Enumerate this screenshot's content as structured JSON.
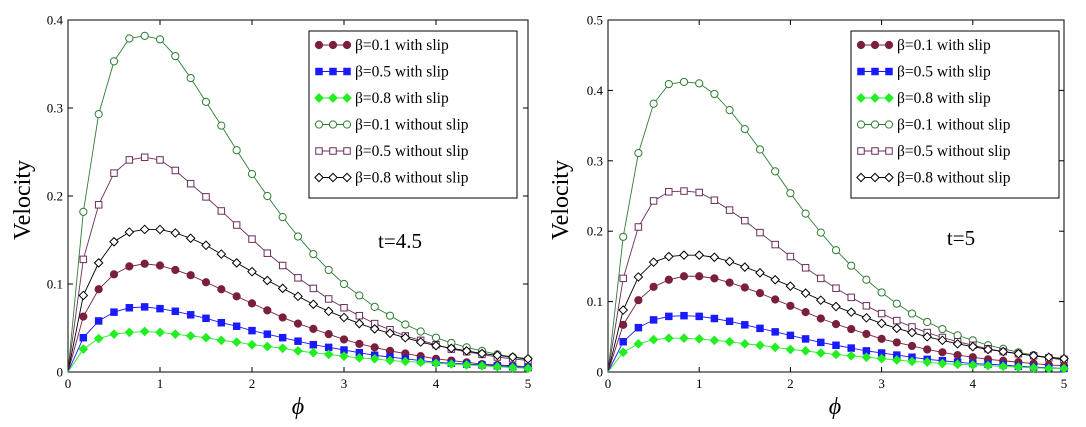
{
  "chart_data": [
    {
      "type": "line",
      "annotation": "t=4.5",
      "xlabel": "ϕ",
      "ylabel": "Velocity",
      "xlim": [
        0,
        5
      ],
      "ylim": [
        0,
        0.4
      ],
      "x_ticks": [
        0,
        1,
        2,
        3,
        4,
        5
      ],
      "y_ticks": [
        0,
        0.1,
        0.2,
        0.3,
        0.4
      ],
      "x_tick_labels": [
        "0",
        "1",
        "2",
        "3",
        "4",
        "5"
      ],
      "y_tick_labels": [
        "0",
        "0.1",
        "0.2",
        "0.3",
        "0.4"
      ],
      "legend_position": "top-right",
      "grid": false,
      "x": [
        0,
        0.1667,
        0.3333,
        0.5,
        0.6667,
        0.8333,
        1,
        1.1667,
        1.3333,
        1.5,
        1.6667,
        1.8333,
        2,
        2.1667,
        2.3333,
        2.5,
        2.6667,
        2.8333,
        3,
        3.1667,
        3.3333,
        3.5,
        3.6667,
        3.8333,
        4,
        4.1667,
        4.3333,
        4.5,
        4.6667,
        4.8333,
        5
      ],
      "series": [
        {
          "name": "β=0.1 with slip",
          "marker": "filled-circle",
          "color": "#7a1f3d",
          "values": [
            0,
            0.063,
            0.094,
            0.111,
            0.12,
            0.123,
            0.121,
            0.116,
            0.11,
            0.102,
            0.094,
            0.086,
            0.078,
            0.07,
            0.062,
            0.055,
            0.049,
            0.043,
            0.037,
            0.032,
            0.028,
            0.024,
            0.021,
            0.018,
            0.015,
            0.013,
            0.011,
            0.009,
            0.008,
            0.007,
            0.006
          ]
        },
        {
          "name": "β=0.5 with slip",
          "marker": "filled-square",
          "color": "#1a1aff",
          "values": [
            0,
            0.039,
            0.058,
            0.068,
            0.073,
            0.074,
            0.072,
            0.069,
            0.065,
            0.061,
            0.056,
            0.052,
            0.047,
            0.043,
            0.039,
            0.035,
            0.031,
            0.028,
            0.025,
            0.022,
            0.019,
            0.017,
            0.015,
            0.013,
            0.011,
            0.01,
            0.009,
            0.008,
            0.007,
            0.006,
            0.005
          ]
        },
        {
          "name": "β=0.8 with slip",
          "marker": "filled-diamond",
          "color": "#22ee22",
          "values": [
            0,
            0.026,
            0.038,
            0.043,
            0.045,
            0.046,
            0.045,
            0.043,
            0.041,
            0.039,
            0.036,
            0.034,
            0.031,
            0.029,
            0.027,
            0.024,
            0.022,
            0.02,
            0.018,
            0.016,
            0.015,
            0.013,
            0.012,
            0.011,
            0.01,
            0.009,
            0.008,
            0.007,
            0.006,
            0.005,
            0.004
          ]
        },
        {
          "name": "β=0.1 without slip",
          "marker": "open-circle",
          "color": "#2e7d32",
          "values": [
            0,
            0.182,
            0.293,
            0.353,
            0.379,
            0.382,
            0.378,
            0.359,
            0.334,
            0.307,
            0.28,
            0.252,
            0.225,
            0.2,
            0.176,
            0.154,
            0.134,
            0.116,
            0.1,
            0.087,
            0.074,
            0.064,
            0.054,
            0.046,
            0.039,
            0.033,
            0.028,
            0.024,
            0.02,
            0.017,
            0.014
          ]
        },
        {
          "name": "β=0.5 without slip",
          "marker": "open-square",
          "color": "#6b2d5c",
          "values": [
            0,
            0.128,
            0.19,
            0.226,
            0.241,
            0.244,
            0.241,
            0.229,
            0.214,
            0.199,
            0.183,
            0.167,
            0.151,
            0.135,
            0.121,
            0.107,
            0.095,
            0.083,
            0.073,
            0.064,
            0.055,
            0.048,
            0.041,
            0.036,
            0.031,
            0.026,
            0.023,
            0.02,
            0.017,
            0.015,
            0.013
          ]
        },
        {
          "name": "β=0.8 without slip",
          "marker": "open-diamond",
          "color": "#000000",
          "values": [
            0,
            0.087,
            0.124,
            0.148,
            0.159,
            0.162,
            0.162,
            0.158,
            0.152,
            0.144,
            0.134,
            0.124,
            0.114,
            0.104,
            0.095,
            0.086,
            0.077,
            0.069,
            0.062,
            0.055,
            0.049,
            0.044,
            0.039,
            0.034,
            0.03,
            0.027,
            0.024,
            0.021,
            0.019,
            0.017,
            0.015
          ]
        }
      ]
    },
    {
      "type": "line",
      "annotation": "t=5",
      "xlabel": "ϕ",
      "ylabel": "Velocity",
      "xlim": [
        0,
        5
      ],
      "ylim": [
        0,
        0.5
      ],
      "x_ticks": [
        0,
        1,
        2,
        3,
        4,
        5
      ],
      "y_ticks": [
        0,
        0.1,
        0.2,
        0.3,
        0.4,
        0.5
      ],
      "x_tick_labels": [
        "0",
        "1",
        "2",
        "3",
        "4",
        "5"
      ],
      "y_tick_labels": [
        "0",
        "0.1",
        "0.2",
        "0.3",
        "0.4",
        "0.5"
      ],
      "legend_position": "top-right",
      "grid": false,
      "x": [
        0,
        0.1667,
        0.3333,
        0.5,
        0.6667,
        0.8333,
        1,
        1.1667,
        1.3333,
        1.5,
        1.6667,
        1.8333,
        2,
        2.1667,
        2.3333,
        2.5,
        2.6667,
        2.8333,
        3,
        3.1667,
        3.3333,
        3.5,
        3.6667,
        3.8333,
        4,
        4.1667,
        4.3333,
        4.5,
        4.6667,
        4.8333,
        5
      ],
      "series": [
        {
          "name": "β=0.1 with slip",
          "marker": "filled-circle",
          "color": "#7a1f3d",
          "values": [
            0,
            0.067,
            0.102,
            0.121,
            0.131,
            0.136,
            0.136,
            0.133,
            0.127,
            0.12,
            0.112,
            0.103,
            0.094,
            0.085,
            0.076,
            0.068,
            0.061,
            0.054,
            0.047,
            0.042,
            0.037,
            0.032,
            0.028,
            0.024,
            0.021,
            0.018,
            0.016,
            0.014,
            0.012,
            0.01,
            0.009
          ]
        },
        {
          "name": "β=0.5 with slip",
          "marker": "filled-square",
          "color": "#1a1aff",
          "values": [
            0,
            0.043,
            0.063,
            0.074,
            0.079,
            0.08,
            0.079,
            0.076,
            0.072,
            0.067,
            0.062,
            0.057,
            0.052,
            0.047,
            0.042,
            0.038,
            0.034,
            0.03,
            0.027,
            0.024,
            0.021,
            0.018,
            0.016,
            0.014,
            0.012,
            0.011,
            0.01,
            0.008,
            0.007,
            0.006,
            0.005
          ]
        },
        {
          "name": "β=0.8 with slip",
          "marker": "filled-diamond",
          "color": "#22ee22",
          "values": [
            0,
            0.028,
            0.04,
            0.046,
            0.048,
            0.048,
            0.047,
            0.045,
            0.043,
            0.04,
            0.038,
            0.035,
            0.032,
            0.03,
            0.027,
            0.025,
            0.023,
            0.021,
            0.019,
            0.017,
            0.015,
            0.014,
            0.012,
            0.011,
            0.01,
            0.009,
            0.008,
            0.007,
            0.006,
            0.005,
            0.005
          ]
        },
        {
          "name": "β=0.1 without slip",
          "marker": "open-circle",
          "color": "#2e7d32",
          "values": [
            0,
            0.192,
            0.311,
            0.381,
            0.409,
            0.412,
            0.41,
            0.395,
            0.372,
            0.345,
            0.316,
            0.285,
            0.254,
            0.225,
            0.198,
            0.173,
            0.151,
            0.131,
            0.113,
            0.097,
            0.083,
            0.071,
            0.061,
            0.052,
            0.045,
            0.038,
            0.033,
            0.028,
            0.024,
            0.02,
            0.017
          ]
        },
        {
          "name": "β=0.5 without slip",
          "marker": "open-square",
          "color": "#6b2d5c",
          "values": [
            0,
            0.133,
            0.206,
            0.243,
            0.256,
            0.257,
            0.255,
            0.244,
            0.23,
            0.215,
            0.198,
            0.181,
            0.164,
            0.148,
            0.133,
            0.119,
            0.106,
            0.094,
            0.083,
            0.073,
            0.064,
            0.056,
            0.049,
            0.043,
            0.038,
            0.033,
            0.029,
            0.026,
            0.023,
            0.02,
            0.018
          ]
        },
        {
          "name": "β=0.8 without slip",
          "marker": "open-diamond",
          "color": "#000000",
          "values": [
            0,
            0.088,
            0.135,
            0.156,
            0.164,
            0.166,
            0.166,
            0.163,
            0.157,
            0.149,
            0.141,
            0.131,
            0.122,
            0.112,
            0.102,
            0.093,
            0.085,
            0.077,
            0.069,
            0.062,
            0.056,
            0.05,
            0.045,
            0.04,
            0.036,
            0.032,
            0.029,
            0.026,
            0.023,
            0.021,
            0.019
          ]
        }
      ]
    }
  ]
}
